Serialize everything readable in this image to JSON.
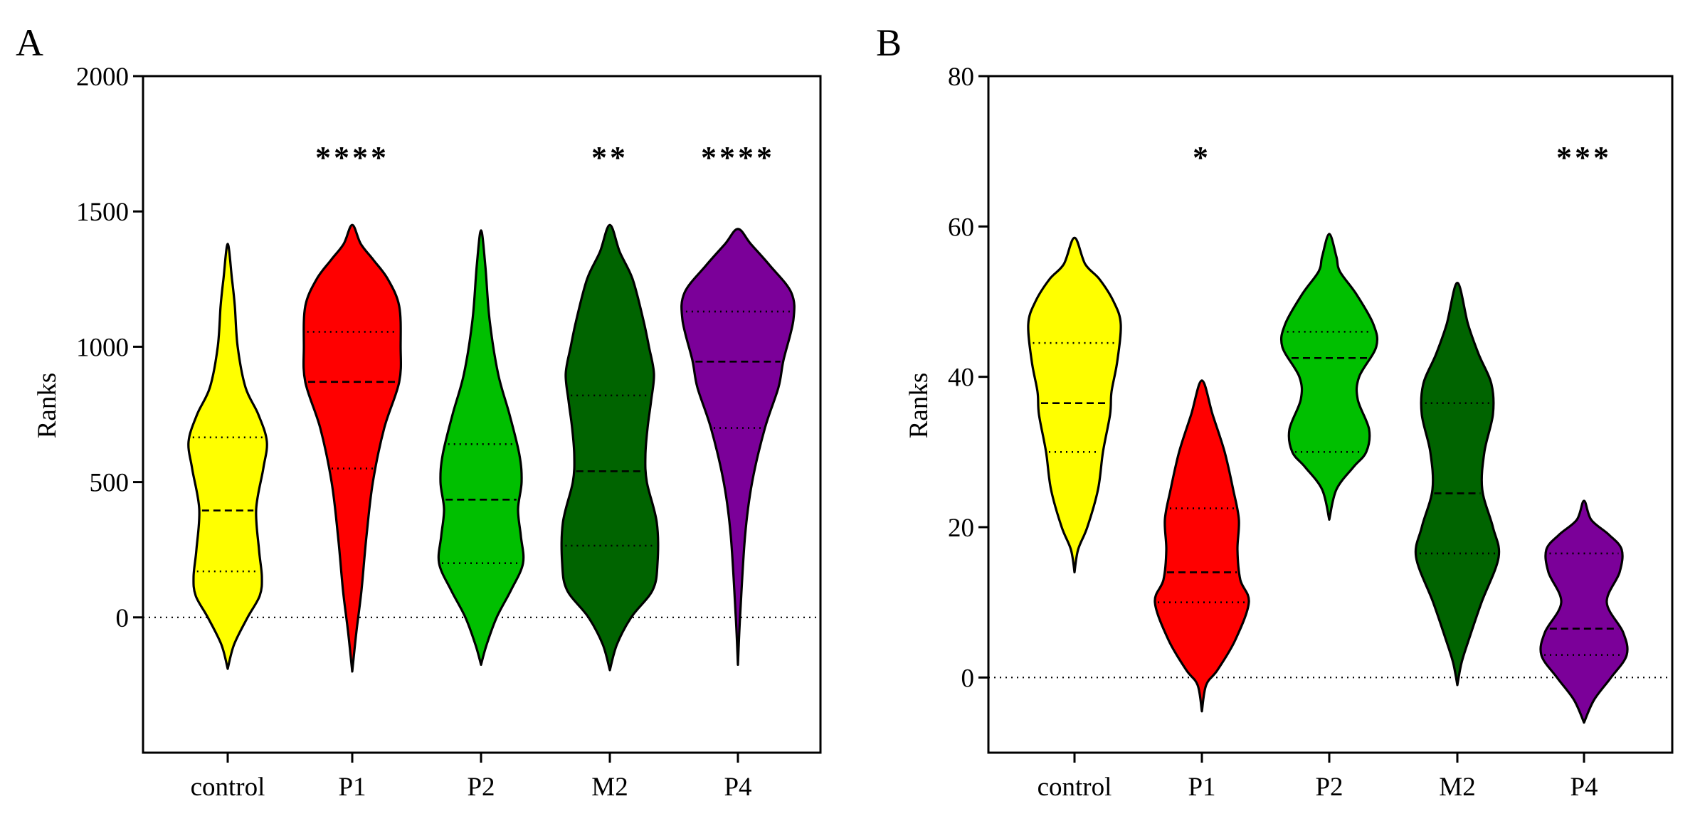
{
  "chart_data": [
    {
      "type": "violin",
      "panel": "A",
      "ylabel": "Ranks",
      "ylim": [
        -500,
        2000
      ],
      "yticks": [
        0,
        500,
        1000,
        1500,
        2000
      ],
      "zero_line": true,
      "categories": [
        "control",
        "P1",
        "P2",
        "M2",
        "P4"
      ],
      "significance": [
        "",
        "****",
        "",
        "**",
        "****"
      ],
      "series": [
        {
          "category": "control",
          "color": "#FFFF00",
          "min": -190,
          "max": 1380,
          "q1": 170,
          "median": 395,
          "q3": 665,
          "profile": [
            [
              -190,
              0
            ],
            [
              -100,
              0.09
            ],
            [
              0,
              0.28
            ],
            [
              80,
              0.45
            ],
            [
              150,
              0.48
            ],
            [
              250,
              0.44
            ],
            [
              400,
              0.4
            ],
            [
              550,
              0.5
            ],
            [
              650,
              0.55
            ],
            [
              750,
              0.43
            ],
            [
              850,
              0.25
            ],
            [
              1000,
              0.14
            ],
            [
              1150,
              0.1
            ],
            [
              1250,
              0.06
            ],
            [
              1380,
              0
            ]
          ]
        },
        {
          "category": "P1",
          "color": "#FF0000",
          "min": -200,
          "max": 1450,
          "q1": 550,
          "median": 870,
          "q3": 1055,
          "profile": [
            [
              -200,
              0
            ],
            [
              -50,
              0.06
            ],
            [
              100,
              0.13
            ],
            [
              300,
              0.2
            ],
            [
              500,
              0.29
            ],
            [
              700,
              0.45
            ],
            [
              870,
              0.66
            ],
            [
              1000,
              0.68
            ],
            [
              1150,
              0.66
            ],
            [
              1250,
              0.5
            ],
            [
              1320,
              0.3
            ],
            [
              1380,
              0.12
            ],
            [
              1450,
              0
            ]
          ]
        },
        {
          "category": "P2",
          "color": "#00BF00",
          "min": -175,
          "max": 1430,
          "q1": 200,
          "median": 435,
          "q3": 640,
          "profile": [
            [
              -175,
              0
            ],
            [
              -100,
              0.08
            ],
            [
              0,
              0.22
            ],
            [
              100,
              0.42
            ],
            [
              200,
              0.59
            ],
            [
              300,
              0.56
            ],
            [
              400,
              0.52
            ],
            [
              500,
              0.57
            ],
            [
              600,
              0.54
            ],
            [
              750,
              0.4
            ],
            [
              900,
              0.24
            ],
            [
              1100,
              0.12
            ],
            [
              1300,
              0.06
            ],
            [
              1430,
              0
            ]
          ]
        },
        {
          "category": "M2",
          "color": "#006400",
          "min": -195,
          "max": 1450,
          "q1": 265,
          "median": 540,
          "q3": 820,
          "profile": [
            [
              -195,
              0
            ],
            [
              -100,
              0.1
            ],
            [
              0,
              0.3
            ],
            [
              100,
              0.6
            ],
            [
              200,
              0.67
            ],
            [
              350,
              0.66
            ],
            [
              500,
              0.52
            ],
            [
              600,
              0.5
            ],
            [
              700,
              0.53
            ],
            [
              800,
              0.58
            ],
            [
              900,
              0.62
            ],
            [
              1000,
              0.55
            ],
            [
              1100,
              0.47
            ],
            [
              1250,
              0.32
            ],
            [
              1350,
              0.14
            ],
            [
              1450,
              0
            ]
          ]
        },
        {
          "category": "P4",
          "color": "#7B0099",
          "min": -175,
          "max": 1435,
          "q1": 700,
          "median": 945,
          "q3": 1130,
          "profile": [
            [
              -175,
              0
            ],
            [
              0,
              0.03
            ],
            [
              300,
              0.1
            ],
            [
              500,
              0.2
            ],
            [
              700,
              0.38
            ],
            [
              850,
              0.57
            ],
            [
              950,
              0.64
            ],
            [
              1100,
              0.78
            ],
            [
              1200,
              0.75
            ],
            [
              1300,
              0.45
            ],
            [
              1380,
              0.18
            ],
            [
              1435,
              0
            ]
          ]
        }
      ]
    },
    {
      "type": "violin",
      "panel": "B",
      "ylabel": "Ranks",
      "ylim": [
        -10,
        80
      ],
      "yticks": [
        0,
        20,
        40,
        60,
        80
      ],
      "zero_line": true,
      "categories": [
        "control",
        "P1",
        "P2",
        "M2",
        "P4"
      ],
      "significance": [
        "",
        "*",
        "",
        "",
        "***"
      ],
      "series": [
        {
          "category": "control",
          "color": "#FFFF00",
          "min": 14,
          "max": 58.5,
          "q1": 30,
          "median": 36.5,
          "q3": 44.5,
          "profile": [
            [
              14,
              0
            ],
            [
              17,
              0.05
            ],
            [
              20,
              0.18
            ],
            [
              25,
              0.33
            ],
            [
              30,
              0.4
            ],
            [
              35,
              0.5
            ],
            [
              38,
              0.52
            ],
            [
              42,
              0.6
            ],
            [
              47,
              0.65
            ],
            [
              50,
              0.55
            ],
            [
              53,
              0.35
            ],
            [
              55,
              0.15
            ],
            [
              58.5,
              0
            ]
          ]
        },
        {
          "category": "P1",
          "color": "#FF0000",
          "min": -4.5,
          "max": 39.5,
          "q1": 10,
          "median": 14,
          "q3": 22.5,
          "profile": [
            [
              -4.5,
              0
            ],
            [
              -1,
              0.06
            ],
            [
              1,
              0.22
            ],
            [
              5,
              0.47
            ],
            [
              10,
              0.66
            ],
            [
              13,
              0.54
            ],
            [
              17,
              0.5
            ],
            [
              21,
              0.52
            ],
            [
              25,
              0.44
            ],
            [
              30,
              0.32
            ],
            [
              35,
              0.15
            ],
            [
              39.5,
              0
            ]
          ]
        },
        {
          "category": "P2",
          "color": "#00BF00",
          "min": 21,
          "max": 59,
          "q1": 30,
          "median": 42.5,
          "q3": 46,
          "profile": [
            [
              21,
              0
            ],
            [
              25,
              0.1
            ],
            [
              28,
              0.34
            ],
            [
              30,
              0.52
            ],
            [
              33,
              0.56
            ],
            [
              37,
              0.4
            ],
            [
              40,
              0.42
            ],
            [
              44,
              0.66
            ],
            [
              47,
              0.62
            ],
            [
              51,
              0.38
            ],
            [
              54,
              0.15
            ],
            [
              56,
              0.1
            ],
            [
              59,
              0
            ]
          ]
        },
        {
          "category": "M2",
          "color": "#006400",
          "min": -1,
          "max": 52.5,
          "q1": 16.5,
          "median": 24.5,
          "q3": 36.5,
          "profile": [
            [
              -1,
              0
            ],
            [
              2,
              0.06
            ],
            [
              5,
              0.16
            ],
            [
              10,
              0.34
            ],
            [
              16,
              0.58
            ],
            [
              20,
              0.5
            ],
            [
              25,
              0.35
            ],
            [
              30,
              0.38
            ],
            [
              35,
              0.5
            ],
            [
              39,
              0.48
            ],
            [
              43,
              0.3
            ],
            [
              47,
              0.15
            ],
            [
              52.5,
              0
            ]
          ]
        },
        {
          "category": "P4",
          "color": "#7B0099",
          "min": -6,
          "max": 23.5,
          "q1": 3,
          "median": 6.5,
          "q3": 16.5,
          "profile": [
            [
              -6,
              0
            ],
            [
              -3,
              0.14
            ],
            [
              0,
              0.38
            ],
            [
              3,
              0.6
            ],
            [
              6,
              0.55
            ],
            [
              10,
              0.32
            ],
            [
              14,
              0.5
            ],
            [
              17,
              0.53
            ],
            [
              19,
              0.35
            ],
            [
              21,
              0.1
            ],
            [
              23.5,
              0
            ]
          ]
        }
      ]
    }
  ]
}
